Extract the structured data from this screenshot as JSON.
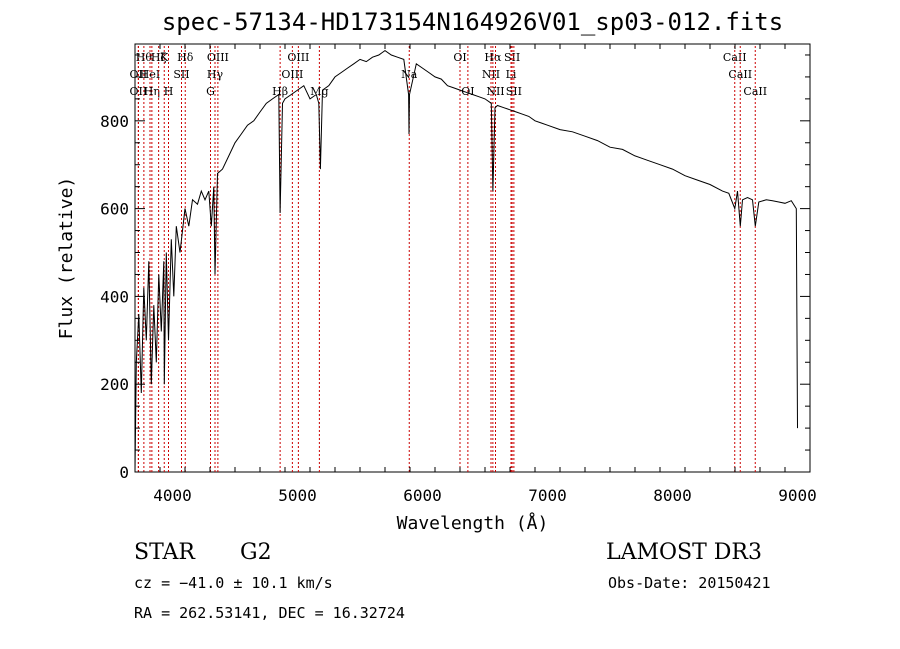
{
  "chart_data": {
    "type": "line",
    "title": "spec-57134-HD173154N164926V01_sp03-012.fits",
    "xlabel": "Wavelength (Å)",
    "ylabel": "Flux (relative)",
    "xlim": [
      3700,
      9100
    ],
    "ylim": [
      0,
      975
    ],
    "xticks": [
      4000,
      5000,
      6000,
      7000,
      8000,
      9000
    ],
    "yticks": [
      0,
      200,
      400,
      600,
      800
    ],
    "series": [
      {
        "name": "spectrum",
        "x": [
          3700,
          3710,
          3730,
          3750,
          3770,
          3790,
          3810,
          3830,
          3850,
          3870,
          3890,
          3910,
          3930,
          3934,
          3950,
          3968,
          3990,
          4010,
          4030,
          4060,
          4100,
          4130,
          4160,
          4200,
          4230,
          4260,
          4290,
          4310,
          4330,
          4340,
          4360,
          4400,
          4450,
          4500,
          4550,
          4600,
          4650,
          4700,
          4750,
          4800,
          4850,
          4861,
          4880,
          4900,
          4950,
          5000,
          5050,
          5100,
          5150,
          5170,
          5183,
          5200,
          5250,
          5300,
          5350,
          5400,
          5450,
          5500,
          5550,
          5600,
          5650,
          5700,
          5750,
          5800,
          5850,
          5889,
          5892,
          5896,
          5950,
          6000,
          6050,
          6100,
          6150,
          6200,
          6250,
          6300,
          6350,
          6400,
          6450,
          6500,
          6550,
          6563,
          6580,
          6600,
          6650,
          6700,
          6750,
          6800,
          6850,
          6900,
          6950,
          7000,
          7100,
          7200,
          7300,
          7400,
          7500,
          7600,
          7700,
          7800,
          7900,
          8000,
          8100,
          8200,
          8300,
          8400,
          8450,
          8498,
          8520,
          8542,
          8560,
          8600,
          8640,
          8662,
          8690,
          8750,
          8800,
          8850,
          8900,
          8950,
          8990,
          9000
        ],
        "values": [
          0,
          250,
          360,
          180,
          420,
          300,
          480,
          200,
          380,
          250,
          450,
          320,
          480,
          200,
          500,
          300,
          530,
          400,
          560,
          500,
          600,
          560,
          620,
          610,
          640,
          620,
          640,
          560,
          650,
          450,
          680,
          690,
          720,
          750,
          770,
          790,
          800,
          820,
          840,
          850,
          860,
          590,
          840,
          850,
          860,
          870,
          880,
          850,
          860,
          840,
          690,
          870,
          880,
          900,
          910,
          920,
          930,
          940,
          935,
          945,
          950,
          960,
          950,
          945,
          940,
          860,
          770,
          860,
          930,
          920,
          910,
          900,
          895,
          880,
          875,
          870,
          865,
          860,
          855,
          850,
          840,
          640,
          830,
          835,
          830,
          825,
          820,
          815,
          810,
          800,
          795,
          790,
          780,
          775,
          765,
          755,
          740,
          735,
          720,
          710,
          700,
          690,
          675,
          665,
          655,
          640,
          635,
          600,
          640,
          560,
          620,
          625,
          620,
          560,
          615,
          620,
          618,
          615,
          612,
          618,
          600,
          100
        ]
      }
    ],
    "lines": [
      {
        "x": 3727,
        "row": 2,
        "label": "OII"
      },
      {
        "x": 3727,
        "row": 1,
        "label": "OII"
      },
      {
        "x": 3771,
        "row": 0,
        "label": "Hθ"
      },
      {
        "x": 3820,
        "row": 1,
        "label": "HeI"
      },
      {
        "x": 3835,
        "row": 2,
        "label": "Hη"
      },
      {
        "x": 3889,
        "row": 0,
        "label": "Hζ"
      },
      {
        "x": 3934,
        "row": 0,
        "label": "K"
      },
      {
        "x": 3968,
        "row": 2,
        "label": "H"
      },
      {
        "x": 4072,
        "row": 1,
        "label": "SII"
      },
      {
        "x": 4102,
        "row": 0,
        "label": "Hδ"
      },
      {
        "x": 4304,
        "row": 2,
        "label": "G"
      },
      {
        "x": 4340,
        "row": 1,
        "label": "Hγ"
      },
      {
        "x": 4363,
        "row": 0,
        "label": "OIII"
      },
      {
        "x": 4861,
        "row": 2,
        "label": "Hβ"
      },
      {
        "x": 4959,
        "row": 1,
        "label": "OIII"
      },
      {
        "x": 5007,
        "row": 0,
        "label": "OIII"
      },
      {
        "x": 5175,
        "row": 2,
        "label": "Mg"
      },
      {
        "x": 5894,
        "row": 1,
        "label": "Na"
      },
      {
        "x": 6300,
        "row": 0,
        "label": "OI"
      },
      {
        "x": 6363,
        "row": 2,
        "label": "OI"
      },
      {
        "x": 6548,
        "row": 1,
        "label": "NII"
      },
      {
        "x": 6563,
        "row": 0,
        "label": "Hα"
      },
      {
        "x": 6584,
        "row": 2,
        "label": "NII"
      },
      {
        "x": 6708,
        "row": 1,
        "label": "Li"
      },
      {
        "x": 6717,
        "row": 0,
        "label": "SII"
      },
      {
        "x": 6731,
        "row": 2,
        "label": "SII"
      },
      {
        "x": 8498,
        "row": 0,
        "label": "CaII"
      },
      {
        "x": 8542,
        "row": 1,
        "label": "CaII"
      },
      {
        "x": 8662,
        "row": 2,
        "label": "CaII"
      }
    ]
  },
  "info": {
    "class": "STAR",
    "subclass": "G2",
    "survey": "LAMOST DR3",
    "cz": "cz = −41.0 ± 10.1 km/s",
    "obs_date": "Obs-Date: 20150421",
    "radec": "RA = 262.53141, DEC =  16.32724"
  }
}
